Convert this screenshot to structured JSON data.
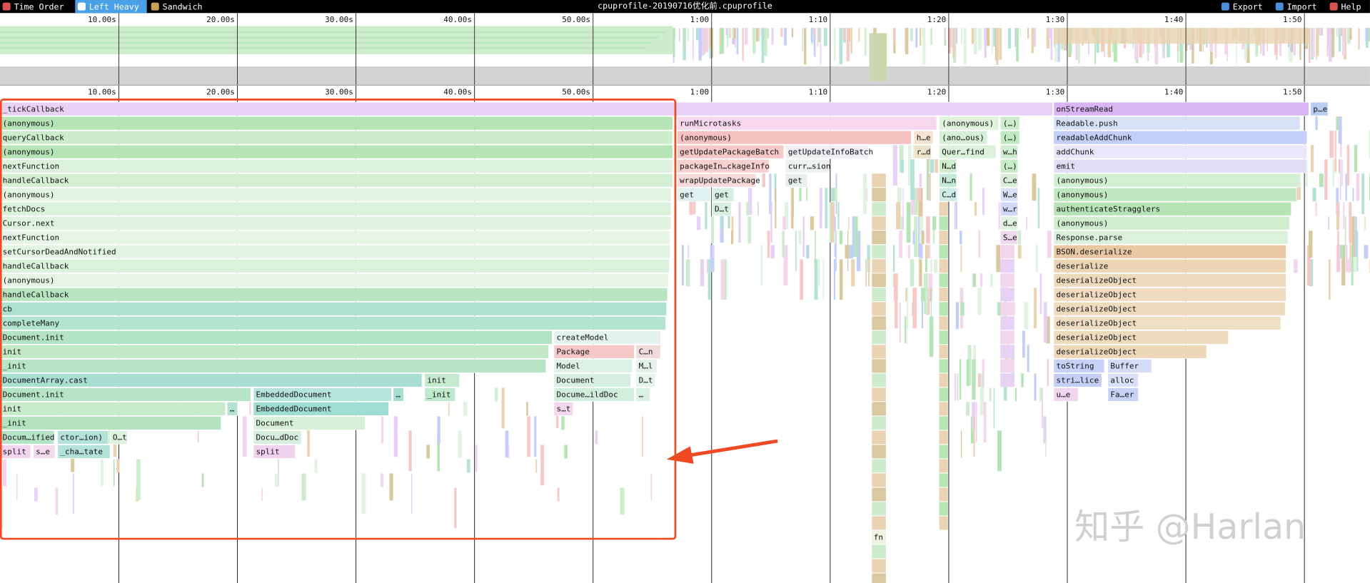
{
  "toolbar": {
    "tabs": [
      "Time Order",
      "Left Heavy",
      "Sandwich"
    ],
    "title": "cpuprofile-20190716优化前.cpuprofile",
    "actions": [
      "Export",
      "Import",
      "Help"
    ]
  },
  "ruler": [
    "10.00s",
    "20.00s",
    "30.00s",
    "40.00s",
    "50.00s",
    "1:00",
    "1:10",
    "1:20",
    "1:30",
    "1:40",
    "1:50"
  ],
  "flamegraph": {
    "rows": [
      [
        "_tickCallback",
        "onStreamRead",
        "p…e"
      ],
      [
        "(anonymous)",
        "runMicrotasks",
        "(anonymous)",
        "(…)",
        "Readable.push"
      ],
      [
        "queryCallback",
        "(anonymous)",
        "h…e",
        "(ano…ous)",
        "(…)",
        "readableAddChunk"
      ],
      [
        "(anonymous)",
        "getUpdatePackageBatch",
        "getUpdateInfoBatch",
        "r…d",
        "Quer…find",
        "w…h",
        "addChunk"
      ],
      [
        "nextFunction",
        "packageIn…ckageInfo",
        "curr…sion",
        "N…d",
        "(…)",
        "emit"
      ],
      [
        "handleCallback",
        "wrapUpdatePackage",
        "get",
        "N…n",
        "C…e",
        "(anonymous)"
      ],
      [
        "(anonymous)",
        "get",
        "get",
        "C…d",
        "W…e",
        "(anonymous)"
      ],
      [
        "fetchDocs",
        "D…t",
        "w…r",
        "authenticateStragglers"
      ],
      [
        "Cursor.next",
        "d…e",
        "(anonymous)"
      ],
      [
        "nextFunction",
        "S…e",
        "Response.parse"
      ],
      [
        "setCursorDeadAndNotified",
        "BSON.deserialize"
      ],
      [
        "handleCallback",
        "deserialize"
      ],
      [
        "(anonymous)",
        "deserializeObject"
      ],
      [
        "handleCallback",
        "deserializeObject"
      ],
      [
        "cb",
        "deserializeObject"
      ],
      [
        "completeMany",
        "deserializeObject"
      ],
      [
        "Document.init",
        "createModel",
        "deserializeObject"
      ],
      [
        "init",
        "Package",
        "C…n",
        "deserializeObject"
      ],
      [
        "_init",
        "Model",
        "M…l",
        "toString",
        "Buffer"
      ],
      [
        "DocumentArray.cast",
        "init",
        "Document",
        "D…t",
        "stri…lice",
        "alloc"
      ],
      [
        "Document.init",
        "EmbeddedDocument",
        "…",
        "_init",
        "Docume…ildDoc",
        "…",
        "u…e",
        "Fa…er"
      ],
      [
        "init",
        "…",
        "EmbeddedDocument",
        "s…t"
      ],
      [
        "_init",
        "Document"
      ],
      [
        "Docum…ified",
        "ctor…ion)",
        "O…t",
        "Docu…dDoc"
      ],
      [
        "split",
        "s…e",
        "_cha…tate",
        "split"
      ]
    ],
    "deep_frame": "fn"
  },
  "watermark": "知乎 @Harlan"
}
